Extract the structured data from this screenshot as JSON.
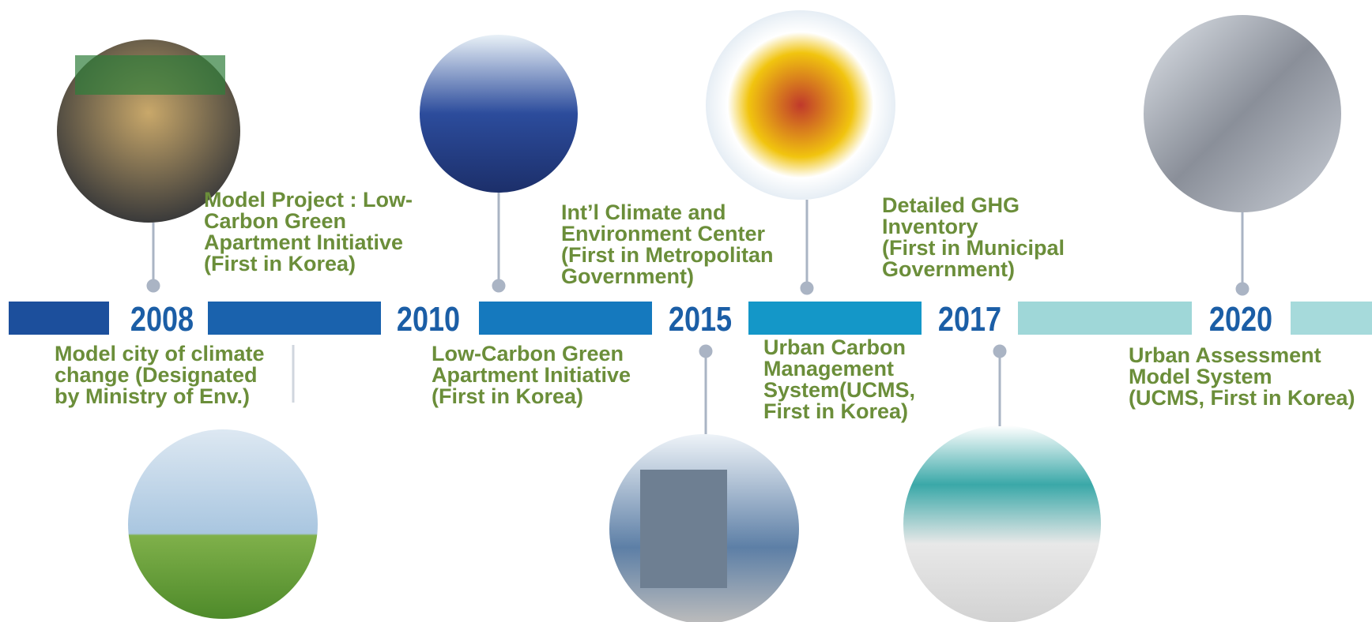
{
  "timeline": {
    "years": [
      "2008",
      "2010",
      "2015",
      "2017",
      "2020"
    ],
    "events": [
      {
        "lines": [
          "Model Project : Low-",
          "Carbon Green",
          "Apartment Initiative",
          "(First in Korea)"
        ]
      },
      {
        "lines": [
          "Model city of climate",
          "change (Designated",
          "by Ministry of Env.)"
        ]
      },
      {
        "lines": [
          "Int’l Climate and",
          "Environment Center",
          "(First in Metropolitan",
          "Government)"
        ]
      },
      {
        "lines": [
          "Low-Carbon Green",
          "Apartment Initiative",
          "(First in Korea)"
        ]
      },
      {
        "lines": [
          "Detailed GHG",
          "Inventory",
          "(First in Municipal",
          "Government)"
        ]
      },
      {
        "lines": [
          "Urban Carbon",
          "Management",
          "System(UCMS,",
          "First in Korea)"
        ]
      },
      {
        "lines": [
          "Urban Assessment",
          "Model System",
          "(UCMS, First in Korea)"
        ]
      }
    ]
  }
}
